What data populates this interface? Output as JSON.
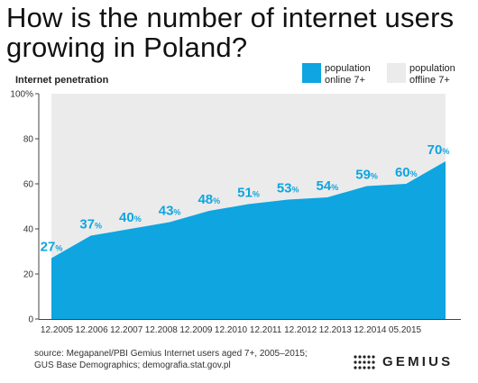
{
  "header": {
    "title": "How is the number of internet users growing in Poland?"
  },
  "chart_data": {
    "type": "area",
    "ylabel": "Internet penetration",
    "ylim": [
      0,
      100
    ],
    "yticks": [
      0,
      20,
      40,
      60,
      80,
      100
    ],
    "ytick_labels": [
      "0",
      "20",
      "40",
      "60",
      "80",
      "100%"
    ],
    "categories": [
      "12.2005",
      "12.2006",
      "12.2007",
      "12.2008",
      "12.2009",
      "12.2010",
      "12.2011",
      "12.2012",
      "12.2013",
      "12.2014",
      "05.2015"
    ],
    "series": [
      {
        "name": "population online 7+",
        "values": [
          27,
          37,
          40,
          43,
          48,
          51,
          53,
          54,
          59,
          60,
          70
        ]
      }
    ],
    "value_labels": [
      "27",
      "37",
      "40",
      "43",
      "48",
      "51",
      "53",
      "54",
      "59",
      "60",
      "70"
    ],
    "value_suffix": "%",
    "legend": [
      {
        "label_line1": "population",
        "label_line2": "online 7+",
        "color": "#0ea5e0"
      },
      {
        "label_line1": "population",
        "label_line2": "offline 7+",
        "color": "#ebebeb"
      }
    ],
    "legend_position": "top-right",
    "colors": {
      "online": "#0ea5e0",
      "offline": "#ebebeb",
      "label": "#0ea5e0"
    },
    "grid": false
  },
  "footer": {
    "source_line1": "source: Megapanel/PBI Gemius Internet users aged 7+, 2005–2015;",
    "source_line2": "GUS Base Demographics; demografia.stat.gov.pl",
    "logo_text": "GEMIUS"
  }
}
